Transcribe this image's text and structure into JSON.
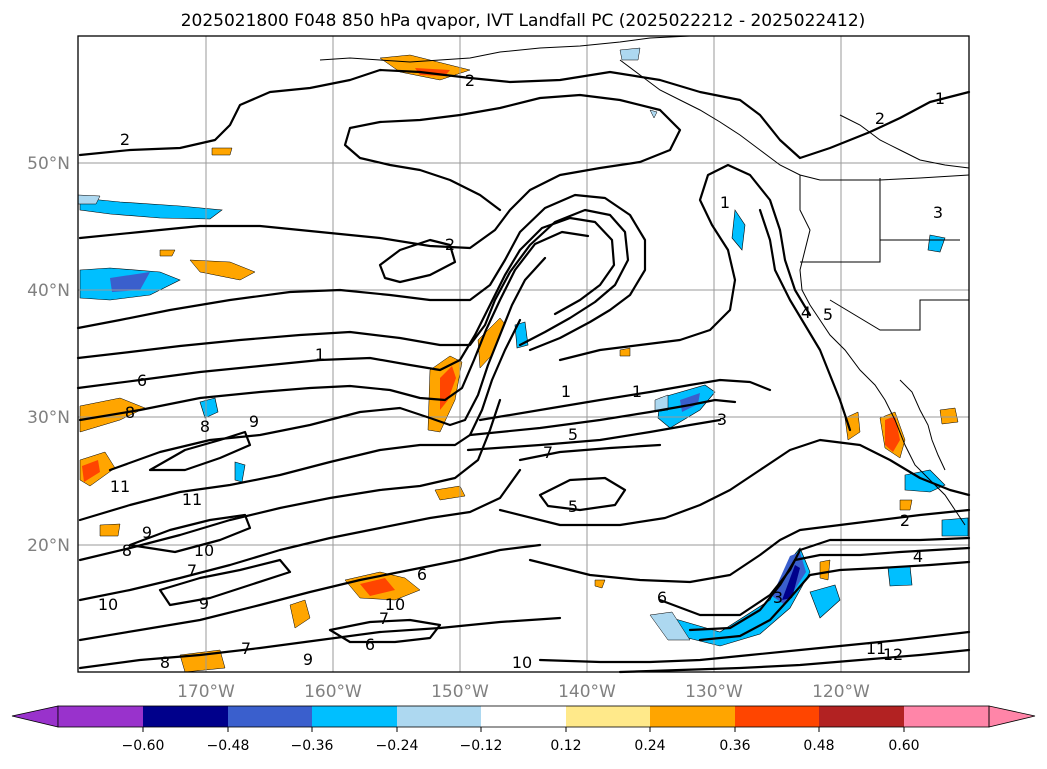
{
  "title": "2025021800 F048 850 hPa qvapor, IVT Landfall PC (2025022212 - 2025022412)",
  "latitude_labels": [
    "50°N",
    "40°N",
    "30°N",
    "20°N"
  ],
  "longitude_labels": [
    "170°W",
    "160°W",
    "150°W",
    "140°W",
    "130°W",
    "120°W"
  ],
  "contour_labels": [
    "2",
    "2",
    "2",
    "2",
    "1",
    "1",
    "1",
    "1",
    "1",
    "3",
    "3",
    "4",
    "5",
    "5",
    "5",
    "6",
    "6",
    "6",
    "6",
    "7",
    "7",
    "7",
    "8",
    "8",
    "8",
    "8",
    "9",
    "9",
    "9",
    "9",
    "10",
    "10",
    "10",
    "10",
    "11",
    "11",
    "11",
    "12",
    "2",
    "3",
    "7",
    "4"
  ],
  "colorbar": {
    "tick_labels": [
      "−0.60",
      "−0.48",
      "−0.36",
      "−0.24",
      "−0.12",
      "0.12",
      "0.24",
      "0.36",
      "0.48",
      "0.60"
    ],
    "colors": [
      "#9932cc",
      "#00008b",
      "#3a5fcd",
      "#00bfff",
      "#add8f0",
      "#ffffff",
      "#ffe98a",
      "#ffa500",
      "#ff4500",
      "#b22222",
      "#ff85a8"
    ],
    "extend": "both"
  },
  "map": {
    "projection": "PlateCarree",
    "lon_range": [
      -178,
      -108
    ],
    "lat_range": [
      10,
      60
    ],
    "grid": true,
    "field": "850 hPa qvapor principal component (shaded) with contours"
  }
}
